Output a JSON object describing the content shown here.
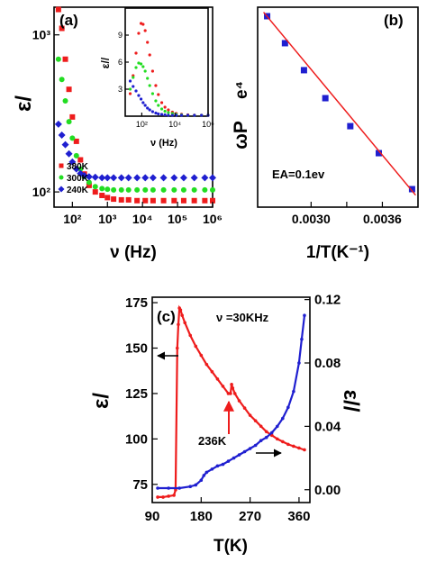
{
  "colors": {
    "red": "#ee1c1c",
    "green": "#22dd22",
    "blue": "#1f1fd0",
    "black": "#000000"
  },
  "chart_data": [
    {
      "id": "a",
      "type": "scatter",
      "panel_label": "(a)",
      "xlabel": "ν (Hz)",
      "ylabel": "ε/",
      "x_scale": "log",
      "y_scale": "log",
      "xlim": [
        30,
        1000000
      ],
      "ylim": [
        80,
        1500
      ],
      "x_ticks": [
        {
          "v": 100,
          "label": "10²"
        },
        {
          "v": 1000,
          "label": "10³"
        },
        {
          "v": 10000,
          "label": "10⁴"
        },
        {
          "v": 100000,
          "label": "10⁵"
        },
        {
          "v": 1000000,
          "label": "10⁶"
        }
      ],
      "y_ticks": [
        {
          "v": 100,
          "label": "10²"
        },
        {
          "v": 1000,
          "label": "10³"
        }
      ],
      "legend_position": "bottom-left",
      "series": [
        {
          "name": "380K",
          "color": "red",
          "marker": "square",
          "x": [
            40,
            50,
            63,
            80,
            100,
            130,
            170,
            220,
            300,
            450,
            700,
            1000,
            1500,
            2500,
            4000,
            7000,
            12000,
            20000,
            40000,
            80000,
            150000,
            300000,
            600000,
            1000000
          ],
          "y": [
            1450,
            1100,
            700,
            450,
            300,
            210,
            160,
            130,
            110,
            100,
            95,
            92,
            90,
            89,
            89,
            88,
            88,
            88,
            88,
            88,
            88,
            88,
            88,
            88
          ]
        },
        {
          "name": "300K",
          "color": "green",
          "marker": "circle",
          "x": [
            40,
            50,
            63,
            80,
            100,
            130,
            170,
            220,
            300,
            450,
            700,
            1000,
            1500,
            2500,
            4000,
            7000,
            12000,
            20000,
            40000,
            80000,
            150000,
            300000,
            600000,
            1000000
          ],
          "y": [
            700,
            520,
            380,
            280,
            220,
            170,
            140,
            125,
            115,
            108,
            105,
            104,
            103,
            103,
            103,
            103,
            103,
            103,
            103,
            103,
            103,
            103,
            103,
            103
          ]
        },
        {
          "name": "240K",
          "color": "blue",
          "marker": "diamond",
          "x": [
            40,
            50,
            63,
            80,
            100,
            130,
            170,
            220,
            300,
            450,
            700,
            1000,
            1500,
            2500,
            4000,
            7000,
            12000,
            20000,
            40000,
            80000,
            150000,
            300000,
            600000,
            1000000
          ],
          "y": [
            270,
            230,
            200,
            175,
            155,
            140,
            131,
            127,
            125,
            124,
            123,
            123,
            123,
            123,
            123,
            123,
            123,
            123,
            123,
            123,
            123,
            123,
            123,
            123
          ]
        }
      ],
      "inset": {
        "type": "scatter",
        "xlabel": "ν (Hz)",
        "ylabel": "ε//",
        "x_scale": "log",
        "xlim": [
          10,
          1000000
        ],
        "ylim": [
          0,
          12
        ],
        "x_ticks": [
          {
            "v": 100,
            "label": "10²"
          },
          {
            "v": 10000,
            "label": "10⁴"
          },
          {
            "v": 1000000,
            "label": "10⁶"
          }
        ],
        "y_ticks": [
          {
            "v": 3,
            "label": "3"
          },
          {
            "v": 6,
            "label": "6"
          },
          {
            "v": 9,
            "label": "9"
          }
        ],
        "series": [
          {
            "name": "380K",
            "color": "red",
            "x": [
              20,
              30,
              45,
              65,
              90,
              120,
              160,
              220,
              300,
              450,
              700,
              1000,
              1600,
              2500,
              4000,
              7000,
              12000,
              25000,
              60000,
              150000,
              400000,
              1000000
            ],
            "y": [
              2.5,
              4.5,
              7,
              9.2,
              10.3,
              10.2,
              9.5,
              8.2,
              6.8,
              5,
              3.4,
              2.4,
              1.5,
              1,
              0.7,
              0.45,
              0.3,
              0.22,
              0.15,
              0.12,
              0.1,
              0.1
            ]
          },
          {
            "name": "300K",
            "color": "green",
            "x": [
              20,
              30,
              45,
              65,
              90,
              120,
              160,
              220,
              300,
              450,
              700,
              1000,
              1600,
              2500,
              4000,
              7000,
              12000,
              25000,
              60000,
              150000,
              400000,
              1000000
            ],
            "y": [
              3,
              4.3,
              5.4,
              5.9,
              5.8,
              5.5,
              5,
              4.2,
              3.4,
              2.5,
              1.7,
              1.2,
              0.8,
              0.55,
              0.4,
              0.3,
              0.2,
              0.15,
              0.1,
              0.1,
              0.1,
              0.1
            ]
          },
          {
            "name": "240K",
            "color": "blue",
            "x": [
              20,
              30,
              45,
              65,
              90,
              120,
              160,
              220,
              300,
              450,
              700,
              1000,
              1600,
              2500,
              4000,
              7000,
              12000,
              25000,
              60000,
              150000,
              400000,
              1000000
            ],
            "y": [
              3.9,
              3.3,
              2.8,
              2.3,
              1.9,
              1.5,
              1.2,
              0.9,
              0.7,
              0.5,
              0.35,
              0.25,
              0.2,
              0.15,
              0.1,
              0.1,
              0.1,
              0.1,
              0.1,
              0.1,
              0.1,
              0.1
            ]
          }
        ]
      }
    },
    {
      "id": "b",
      "type": "scatter",
      "panel_label": "(b)",
      "xlabel": "1/T(K⁻¹)",
      "ylabel": "ωP",
      "ylabel_extra": "e⁴",
      "xlim": [
        0.00255,
        0.0039
      ],
      "ylim": [
        0,
        1
      ],
      "x_ticks": [
        {
          "v": 0.003,
          "label": "0.0030"
        },
        {
          "v": 0.0033,
          "label": ""
        },
        {
          "v": 0.0036,
          "label": "0.0036"
        }
      ],
      "annotation": "EA=0.1ev",
      "series": [
        {
          "name": "data",
          "color": "blue",
          "marker": "square",
          "x": [
            0.00263,
            0.00278,
            0.00294,
            0.00312,
            0.00333,
            0.00357,
            0.00385
          ],
          "y": [
            0.955,
            0.82,
            0.685,
            0.545,
            0.405,
            0.27,
            0.09
          ]
        },
        {
          "name": "fit",
          "color": "red",
          "marker": "line",
          "x": [
            0.0026,
            0.00388
          ],
          "y": [
            0.975,
            0.06
          ]
        }
      ]
    },
    {
      "id": "c",
      "type": "line",
      "panel_label": "(c)",
      "xlabel": "T(K)",
      "ylabel_left": "ε/",
      "ylabel_right": "ε//",
      "annotation": "ν =30KHz",
      "peak_label": "236K",
      "xlim": [
        90,
        380
      ],
      "ylim_left": [
        65,
        178
      ],
      "ylim_right": [
        -0.0081,
        0.1215
      ],
      "x_ticks": [
        {
          "v": 90,
          "label": "90"
        },
        {
          "v": 180,
          "label": "180"
        },
        {
          "v": 270,
          "label": "270"
        },
        {
          "v": 360,
          "label": "360"
        }
      ],
      "y_ticks_left": [
        {
          "v": 75,
          "label": "75"
        },
        {
          "v": 100,
          "label": "100"
        },
        {
          "v": 125,
          "label": "125"
        },
        {
          "v": 150,
          "label": "150"
        },
        {
          "v": 175,
          "label": "175"
        }
      ],
      "y_ticks_right": [
        {
          "v": 0,
          "label": "0.00"
        },
        {
          "v": 0.04,
          "label": "0.04"
        },
        {
          "v": 0.08,
          "label": "0.08"
        },
        {
          "v": 0.12,
          "label": "0.12"
        }
      ],
      "series": [
        {
          "name": "ε/",
          "color": "red",
          "axis": "left",
          "x": [
            100,
            110,
            120,
            130,
            133,
            136,
            138,
            140,
            142,
            145,
            150,
            160,
            170,
            180,
            190,
            200,
            210,
            220,
            230,
            234,
            236,
            238,
            242,
            250,
            260,
            270,
            280,
            290,
            300,
            310,
            320,
            330,
            340,
            350,
            360,
            370
          ],
          "y": [
            68,
            68,
            68.5,
            69,
            72,
            150,
            163,
            172,
            171,
            168,
            164,
            157,
            151,
            146,
            141,
            137,
            133,
            129,
            125,
            125,
            130,
            128,
            125,
            121,
            117,
            113,
            110,
            107,
            104,
            102,
            100,
            98.5,
            97,
            96,
            95,
            94
          ]
        },
        {
          "name": "ε//",
          "color": "blue",
          "axis": "right",
          "x": [
            100,
            120,
            140,
            160,
            170,
            180,
            185,
            190,
            200,
            210,
            220,
            230,
            240,
            250,
            260,
            270,
            280,
            290,
            300,
            310,
            320,
            330,
            340,
            350,
            360,
            365,
            370
          ],
          "y": [
            0.001,
            0.001,
            0.001,
            0.002,
            0.003,
            0.006,
            0.009,
            0.011,
            0.013,
            0.015,
            0.016,
            0.018,
            0.02,
            0.022,
            0.024,
            0.026,
            0.028,
            0.031,
            0.033,
            0.036,
            0.04,
            0.045,
            0.052,
            0.062,
            0.08,
            0.095,
            0.11
          ]
        }
      ]
    }
  ]
}
